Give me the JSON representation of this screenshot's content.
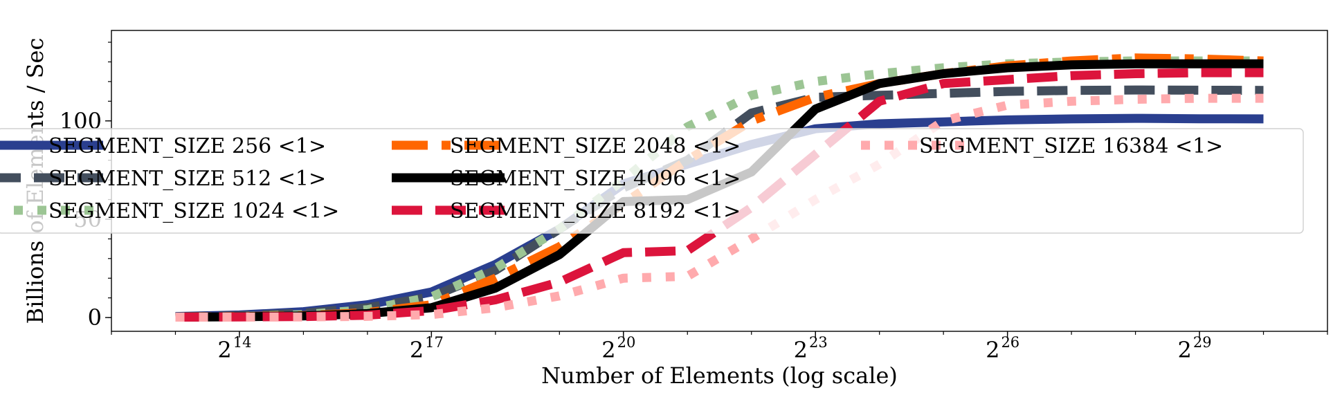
{
  "chart_data": {
    "type": "line",
    "title": "",
    "xlabel": "Number of Elements (log scale)",
    "ylabel": "Billions of Elements / Sec",
    "x_scale": "log2",
    "x_base": "2",
    "xlim": [
      4096,
      2147483648
    ],
    "ylim": [
      -7,
      146
    ],
    "x_ticks": [
      {
        "exp": "14",
        "value": 16384
      },
      {
        "exp": "17",
        "value": 131072
      },
      {
        "exp": "20",
        "value": 1048576
      },
      {
        "exp": "23",
        "value": 8388608
      },
      {
        "exp": "26",
        "value": 67108864
      },
      {
        "exp": "29",
        "value": 536870912
      }
    ],
    "y_ticks": [
      {
        "label": "0",
        "value": 0
      },
      {
        "label": "50",
        "value": 50
      },
      {
        "label": "100",
        "value": 100
      }
    ],
    "grid": false,
    "legend_position": "center",
    "legend_columns": 3,
    "x": [
      8192,
      16384,
      32768,
      65536,
      131072,
      262144,
      524288,
      1048576,
      2097152,
      4194304,
      8388608,
      16777216,
      33554432,
      67108864,
      134217728,
      268435456,
      536870912,
      1073741824
    ],
    "series": [
      {
        "name": "SEGMENT_SIZE 256 <1>",
        "color": "#2a3f8f",
        "style": "solid",
        "values": [
          0.5,
          1.3,
          3.0,
          6.5,
          13.0,
          27.0,
          45.0,
          68.0,
          78.0,
          88.0,
          96.0,
          98.5,
          99.5,
          100.5,
          101.0,
          101.3,
          101.1,
          101.0
        ]
      },
      {
        "name": "SEGMENT_SIZE 512 <1>",
        "color": "#434e5d",
        "style": "dash",
        "values": [
          0.3,
          0.9,
          2.2,
          5.0,
          10.5,
          24.0,
          45.0,
          66.0,
          80.0,
          104.0,
          112.0,
          113.0,
          114.0,
          115.0,
          115.5,
          115.7,
          115.6,
          115.5
        ]
      },
      {
        "name": "SEGMENT_SIZE 1024 <1>",
        "color": "#9cc594",
        "style": "dot",
        "values": [
          0.2,
          0.5,
          1.5,
          4.0,
          10.5,
          25.0,
          45.0,
          70.0,
          97.0,
          113.0,
          120.0,
          124.0,
          127.0,
          129.0,
          130.0,
          130.5,
          130.5,
          130.5
        ]
      },
      {
        "name": "SEGMENT_SIZE 2048 <1>",
        "color": "#ff6600",
        "style": "dashdot",
        "values": [
          0.2,
          0.5,
          1.0,
          2.5,
          6.5,
          20.0,
          36.0,
          58.0,
          80.0,
          100.0,
          112.0,
          119.0,
          124.0,
          128.0,
          130.5,
          132.0,
          131.5,
          130.5
        ]
      },
      {
        "name": "SEGMENT_SIZE 4096 <1>",
        "color": "#000000",
        "style": "solid",
        "values": [
          0.2,
          0.4,
          0.8,
          2.0,
          5.0,
          15.0,
          32.0,
          59.0,
          60.0,
          74.0,
          106.0,
          119.0,
          124.0,
          127.0,
          128.5,
          129.0,
          129.0,
          129.0
        ]
      },
      {
        "name": "SEGMENT_SIZE 8192 <1>",
        "color": "#dc143c",
        "style": "dash",
        "values": [
          0.2,
          0.3,
          0.5,
          1.2,
          3.5,
          9.0,
          18.0,
          33.0,
          34.0,
          56.0,
          83.0,
          110.0,
          119.0,
          121.0,
          123.0,
          124.0,
          124.5,
          124.5
        ]
      },
      {
        "name": "SEGMENT_SIZE 16384 <1>",
        "color": "#ffaaad",
        "style": "dot",
        "values": [
          0.2,
          0.2,
          0.3,
          0.6,
          1.5,
          5.0,
          11.0,
          20.0,
          21.0,
          40.0,
          60.0,
          78.0,
          100.0,
          108.0,
          110.0,
          111.0,
          111.5,
          111.5
        ]
      }
    ]
  }
}
